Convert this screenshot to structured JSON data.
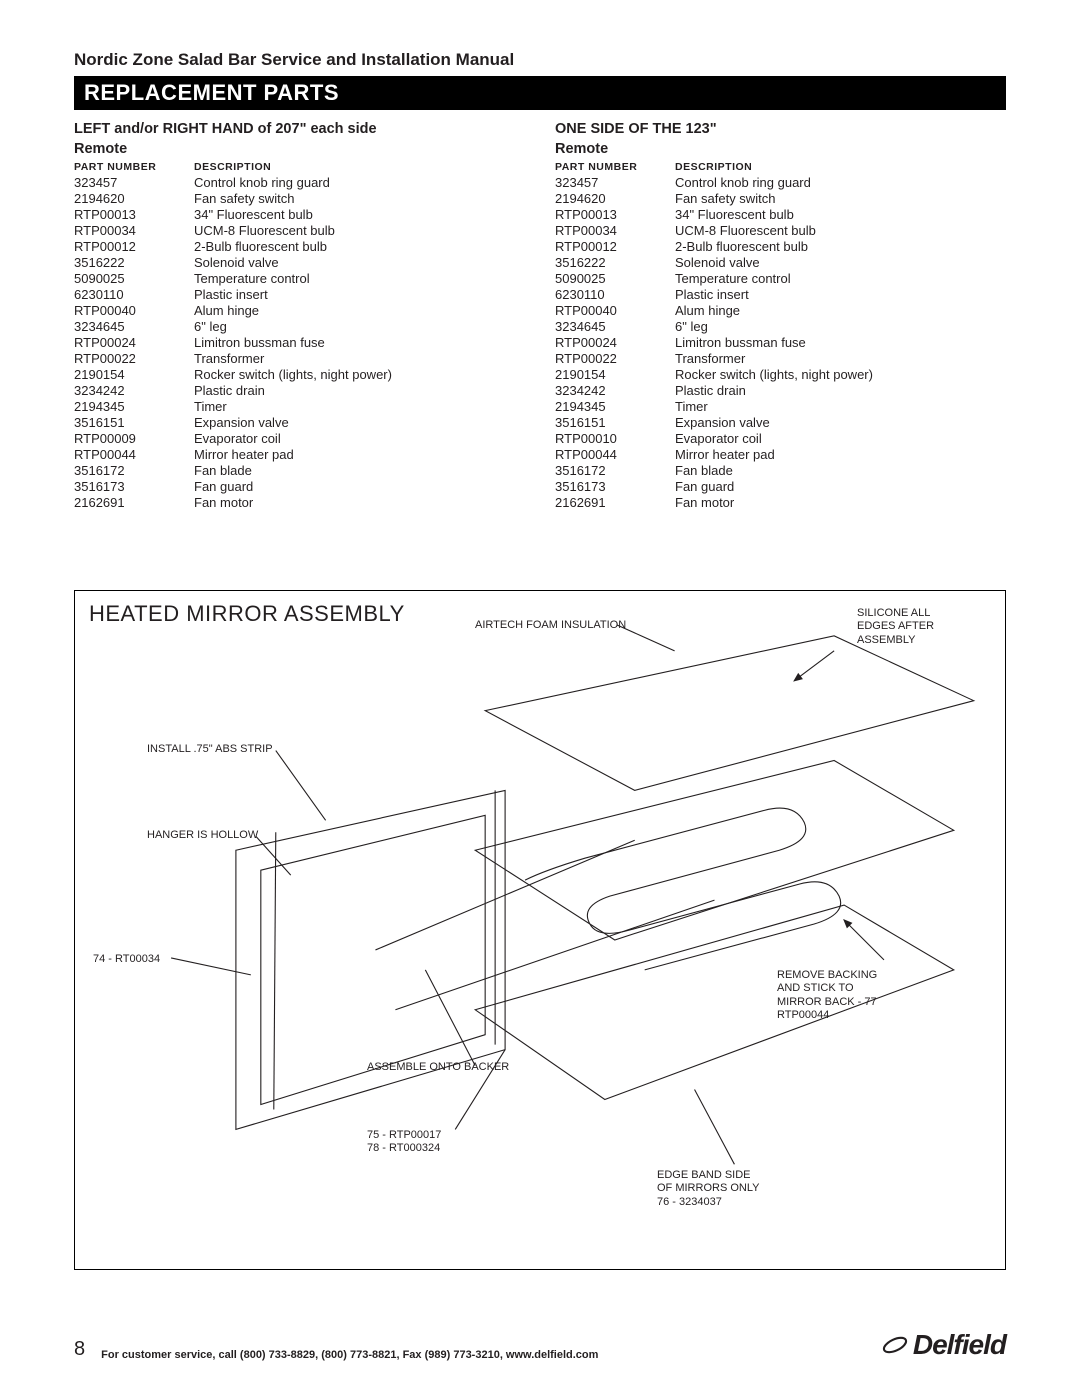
{
  "header": {
    "doc_title": "Nordic Zone Salad Bar Service and Installation Manual",
    "section_title": "REPLACEMENT PARTS"
  },
  "left_table": {
    "title_line1": "LEFT and/or RIGHT HAND of 207\" each side",
    "title_line2": "Remote",
    "col_part": "PART  NUMBER",
    "col_desc": "DESCRIPTION",
    "rows": [
      {
        "pn": "323457",
        "desc": "Control knob ring guard"
      },
      {
        "pn": "2194620",
        "desc": "Fan safety switch"
      },
      {
        "pn": "RTP00013",
        "desc": "34\" Fluorescent bulb"
      },
      {
        "pn": "RTP00034",
        "desc": "UCM-8 Fluorescent bulb"
      },
      {
        "pn": "RTP00012",
        "desc": "2-Bulb fluorescent bulb"
      },
      {
        "pn": "3516222",
        "desc": "Solenoid valve"
      },
      {
        "pn": "5090025",
        "desc": "Temperature control"
      },
      {
        "pn": "6230110",
        "desc": "Plastic insert"
      },
      {
        "pn": "RTP00040",
        "desc": "Alum hinge"
      },
      {
        "pn": "3234645",
        "desc": "6\" leg"
      },
      {
        "pn": "RTP00024",
        "desc": "Limitron bussman fuse"
      },
      {
        "pn": "RTP00022",
        "desc": "Transformer"
      },
      {
        "pn": "2190154",
        "desc": "Rocker switch (lights, night power)"
      },
      {
        "pn": "3234242",
        "desc": "Plastic drain"
      },
      {
        "pn": "2194345",
        "desc": "Timer"
      },
      {
        "pn": "3516151",
        "desc": "Expansion valve"
      },
      {
        "pn": "RTP00009",
        "desc": "Evaporator coil"
      },
      {
        "pn": "RTP00044",
        "desc": "Mirror heater pad"
      },
      {
        "pn": "3516172",
        "desc": "Fan blade"
      },
      {
        "pn": "3516173",
        "desc": "Fan guard"
      },
      {
        "pn": "2162691",
        "desc": "Fan motor"
      }
    ]
  },
  "right_table": {
    "title_line1": "ONE SIDE OF THE 123\"",
    "title_line2": "Remote",
    "col_part": "PART  NUMBER",
    "col_desc": "DESCRIPTION",
    "rows": [
      {
        "pn": "323457",
        "desc": "Control knob ring guard"
      },
      {
        "pn": "2194620",
        "desc": "Fan safety switch"
      },
      {
        "pn": "RTP00013",
        "desc": "34\" Fluorescent bulb"
      },
      {
        "pn": "RTP00034",
        "desc": "UCM-8 Fluorescent bulb"
      },
      {
        "pn": "RTP00012",
        "desc": "2-Bulb fluorescent bulb"
      },
      {
        "pn": "3516222",
        "desc": "Solenoid valve"
      },
      {
        "pn": "5090025",
        "desc": "Temperature control"
      },
      {
        "pn": "6230110",
        "desc": "Plastic insert"
      },
      {
        "pn": "RTP00040",
        "desc": "Alum hinge"
      },
      {
        "pn": "3234645",
        "desc": "6\" leg"
      },
      {
        "pn": "RTP00024",
        "desc": "Limitron bussman fuse"
      },
      {
        "pn": "RTP00022",
        "desc": "Transformer"
      },
      {
        "pn": "2190154",
        "desc": "Rocker switch (lights, night power)"
      },
      {
        "pn": "3234242",
        "desc": "Plastic drain"
      },
      {
        "pn": "2194345",
        "desc": "Timer"
      },
      {
        "pn": "3516151",
        "desc": "Expansion valve"
      },
      {
        "pn": "RTP00010",
        "desc": "Evaporator coil"
      },
      {
        "pn": "RTP00044",
        "desc": "Mirror heater pad"
      },
      {
        "pn": "3516172",
        "desc": "Fan blade"
      },
      {
        "pn": "3516173",
        "desc": "Fan guard"
      },
      {
        "pn": "2162691",
        "desc": "Fan motor"
      }
    ]
  },
  "diagram": {
    "title": "HEATED MIRROR ASSEMBLY",
    "callouts": {
      "airtech": "AIRTECH FOAM INSULATION",
      "silicone_l1": "SILICONE ALL",
      "silicone_l2": "EDGES AFTER",
      "silicone_l3": "ASSEMBLY",
      "abs_strip": "INSTALL .75\" ABS STRIP",
      "hanger": "HANGER IS HOLLOW",
      "rt74": "74 - RT00034",
      "assemble": "ASSEMBLE ONTO BACKER",
      "p75": "75 - RTP00017",
      "p78": "78 - RT000324",
      "remove_l1": "REMOVE BACKING",
      "remove_l2": "AND STICK TO",
      "remove_l3": "MIRROR BACK - 77",
      "remove_l4": "RTP00044",
      "edge_l1": "EDGE BAND SIDE",
      "edge_l2": "OF MIRRORS ONLY",
      "edge_l3": "76 - 3234037"
    },
    "stroke_color": "#231f20",
    "stroke_width": 1.1
  },
  "footer": {
    "page_number": "8",
    "service_text": "For customer service, call (800) 733-8829, (800) 773-8821, Fax (989) 773-3210, www.delfield.com",
    "brand": "Delfield"
  }
}
